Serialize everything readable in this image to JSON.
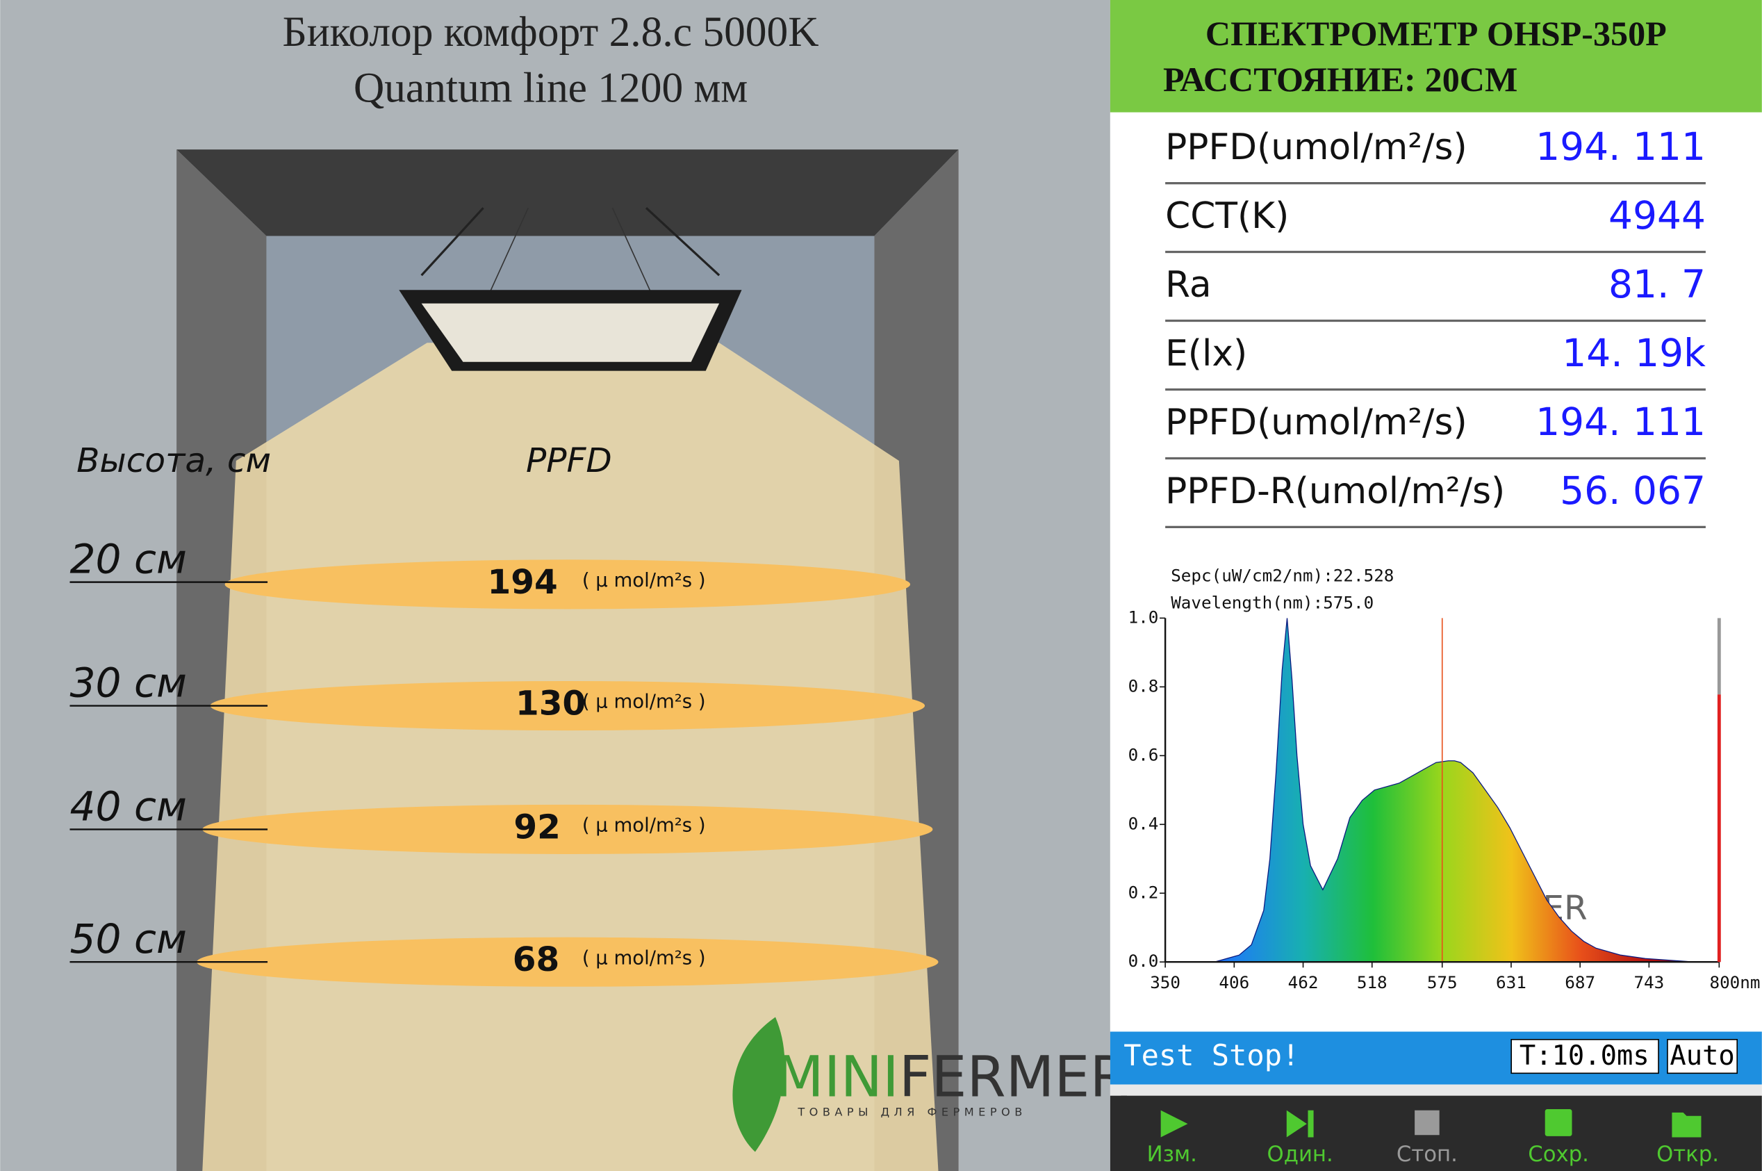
{
  "left": {
    "title": [
      "Биколор комфорт 2.8.с 5000K",
      "Quantum line 1200 мм"
    ],
    "height_header": "Высота, см",
    "ppfd_header": "PPFD",
    "unit": "( µ mol/m²s )",
    "levels": [
      {
        "height": "20 см",
        "ppfd": 194
      },
      {
        "height": "30 см",
        "ppfd": 130
      },
      {
        "height": "40 см",
        "ppfd": 92
      },
      {
        "height": "50 см",
        "ppfd": 68
      }
    ],
    "logo": {
      "name_a": "MINI",
      "name_b": "FERMER",
      "tagline": "ТОВАРЫ ДЛЯ ФЕРМЕРОВ"
    }
  },
  "spectrometer": {
    "title": "СПЕКТРОМЕТР OHSP-350P",
    "distance_label": "РАССТОЯНИЕ:",
    "distance": "20СМ",
    "readings": [
      {
        "label": "PPFD(umol/m²/s)",
        "value": "194. 111"
      },
      {
        "label": "CCT(K)",
        "value": "4944"
      },
      {
        "label": "Ra",
        "value": "81. 7"
      },
      {
        "label": "E(lx)",
        "value": "14. 19k"
      },
      {
        "label": "PPFD(umol/m²/s)",
        "value": "194. 111"
      },
      {
        "label": "PPFD-R(umol/m²/s)",
        "value": "56. 067"
      }
    ],
    "status": "Test Stop!",
    "time": "T:10.0ms",
    "mode": "Auto",
    "buttons": [
      "Изм.",
      "Один.",
      "Стоп.",
      "Сохр.",
      "Откр."
    ]
  },
  "chart_data": {
    "type": "area",
    "annotations": [
      "Sepc(uW/cm2/nm):22.528",
      "Wavelength(nm):575.0"
    ],
    "x": [
      390,
      400,
      410,
      420,
      430,
      435,
      440,
      445,
      449,
      453,
      457,
      462,
      468,
      478,
      490,
      500,
      510,
      520,
      530,
      540,
      550,
      560,
      570,
      580,
      585,
      590,
      600,
      610,
      620,
      630,
      640,
      650,
      660,
      670,
      680,
      690,
      700,
      720,
      740,
      760,
      780,
      800
    ],
    "values": [
      0,
      0.01,
      0.02,
      0.05,
      0.15,
      0.3,
      0.55,
      0.85,
      1.0,
      0.82,
      0.6,
      0.4,
      0.28,
      0.21,
      0.3,
      0.42,
      0.47,
      0.5,
      0.51,
      0.52,
      0.54,
      0.56,
      0.58,
      0.585,
      0.585,
      0.58,
      0.55,
      0.5,
      0.45,
      0.39,
      0.32,
      0.25,
      0.18,
      0.13,
      0.09,
      0.06,
      0.04,
      0.02,
      0.01,
      0.005,
      0,
      0
    ],
    "xlim": [
      350,
      800
    ],
    "ylim": [
      0,
      1
    ],
    "xticks": [
      350,
      406,
      462,
      518,
      575,
      631,
      687,
      743,
      {
        "value": 800,
        "label": "800nm"
      }
    ],
    "yticks": [
      {
        "value": 0,
        "label": "0.0"
      },
      {
        "value": 0.2,
        "label": "0.2"
      },
      {
        "value": 0.4,
        "label": "0.4"
      },
      {
        "value": 0.6,
        "label": "0.6"
      },
      {
        "value": 0.8,
        "label": "0.8"
      },
      {
        "value": 1,
        "label": "1.0"
      }
    ],
    "marker": 575,
    "marker_color": "#e8501a",
    "gradient": [
      "#1a2fd6",
      "#1e7ff0",
      "#18b0b0",
      "#1fbf3a",
      "#9ad61c",
      "#f0c21a",
      "#e8501a",
      "#b01010",
      "#7a0808"
    ]
  }
}
